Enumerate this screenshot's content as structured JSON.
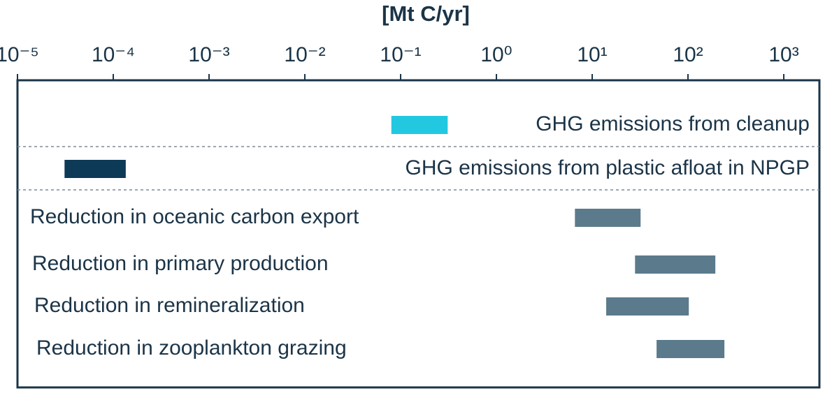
{
  "chart_data": {
    "type": "range-bar",
    "title": "[Mt C/yr]",
    "xscale": "log",
    "xlim": [
      1e-05,
      2355
    ],
    "xticks": [
      {
        "value": 1e-05,
        "label": "10⁻⁵"
      },
      {
        "value": 0.0001,
        "label": "10⁻⁴"
      },
      {
        "value": 0.001,
        "label": "10⁻³"
      },
      {
        "value": 0.01,
        "label": "10⁻²"
      },
      {
        "value": 0.1,
        "label": "10⁻¹"
      },
      {
        "value": 1,
        "label": "10⁰"
      },
      {
        "value": 10,
        "label": "10¹"
      },
      {
        "value": 100,
        "label": "10²"
      },
      {
        "value": 1000,
        "label": "10³"
      }
    ],
    "categories": [
      "GHG emissions from cleanup",
      "GHG emissions from plastic afloat in NPGP",
      "Reduction in oceanic carbon export",
      "Reduction in primary production",
      "Reduction in remineralization",
      "Reduction in zooplankton grazing"
    ],
    "starts": [
      0.08,
      3.1e-05,
      6.6,
      28,
      14,
      47
    ],
    "ends": [
      0.31,
      0.000135,
      32,
      193,
      102,
      240
    ],
    "colors": [
      "#22c8e0",
      "#0d3a56",
      "#5b7a8c",
      "#5b7a8c",
      "#5b7a8c",
      "#5b7a8c"
    ]
  }
}
